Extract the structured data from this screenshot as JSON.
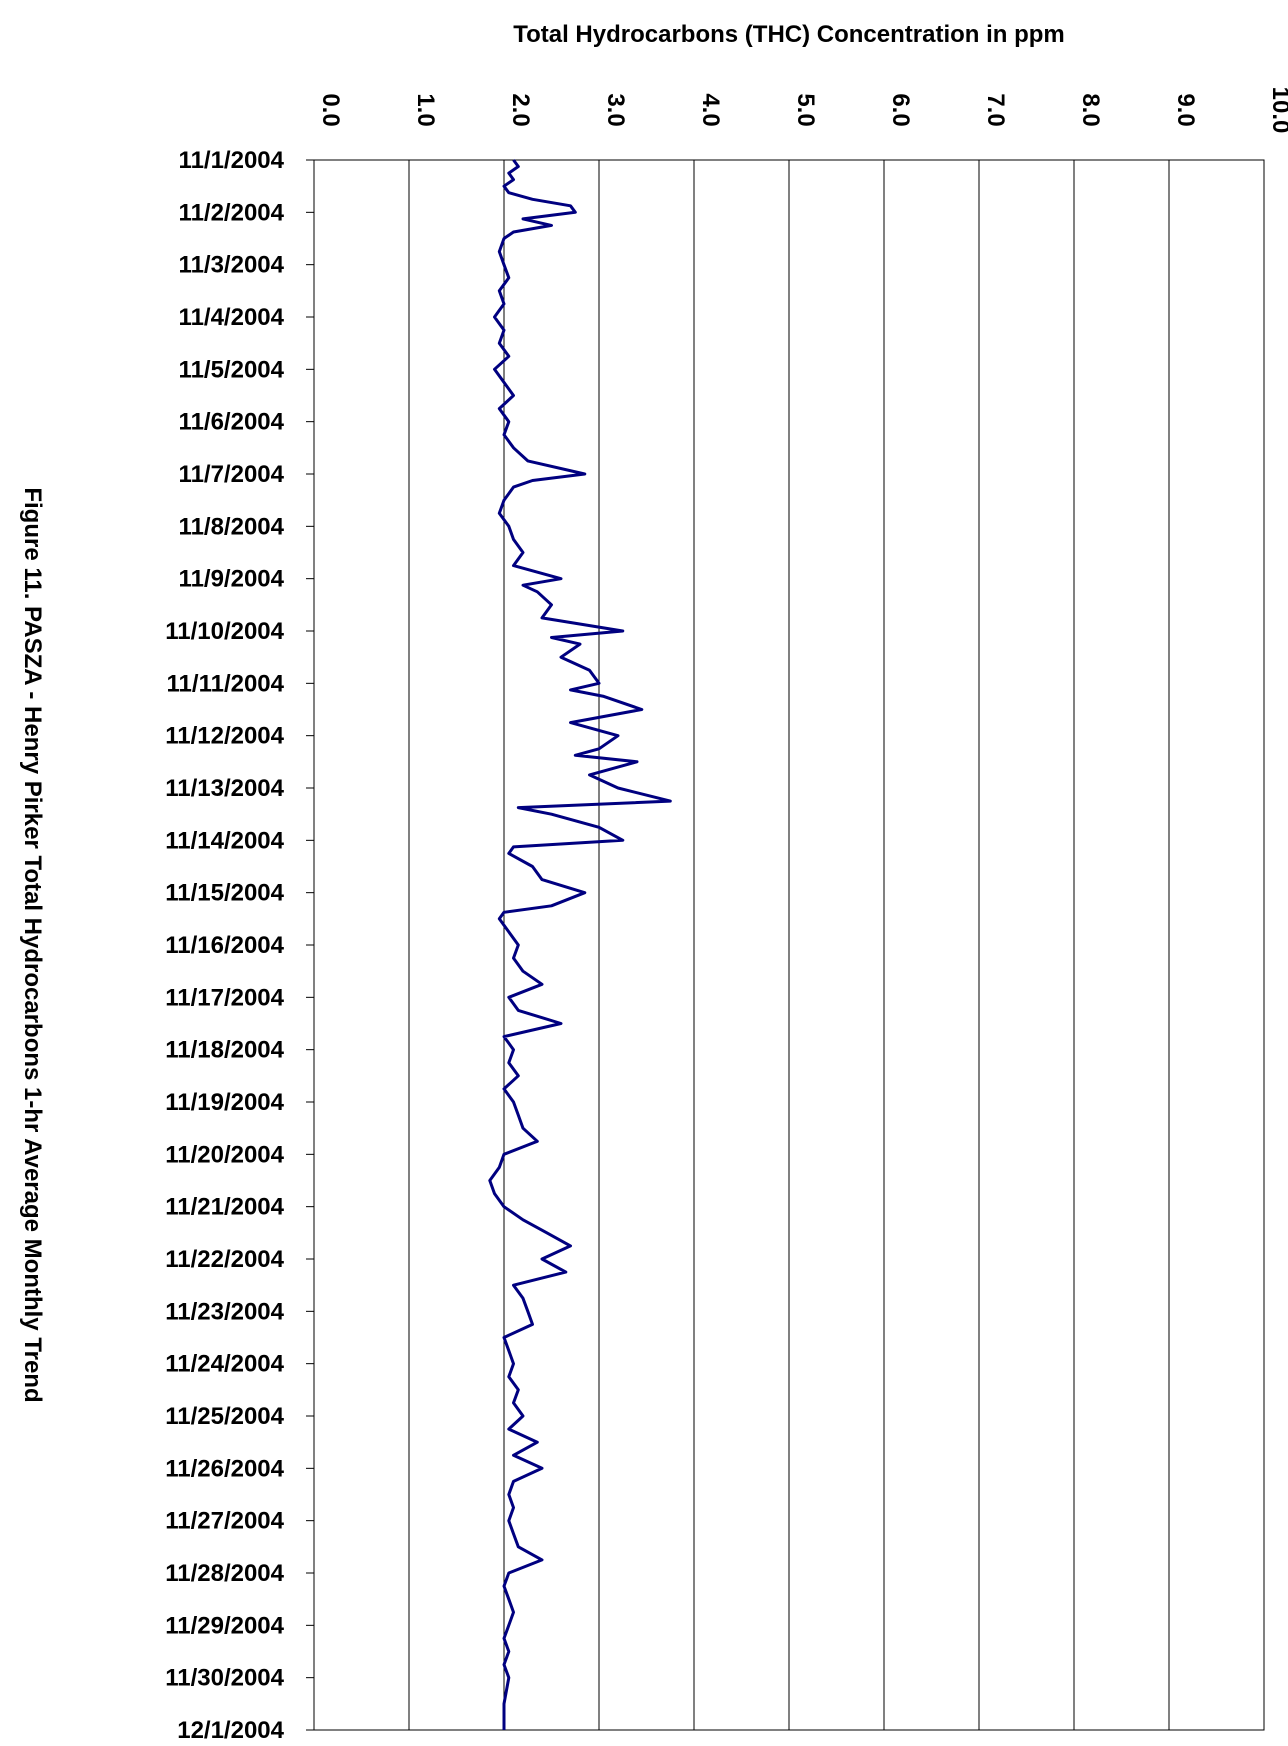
{
  "chart_data": {
    "type": "line",
    "title": "Figure 11.  PASZA - Henry Pirker Total Hydrocarbons 1-hr Average Monthly Trend",
    "xlabel": "Total Hydrocarbons (THC) Concentration in ppm",
    "ylabel": "",
    "value_axis": {
      "min": 0.0,
      "max": 10.0,
      "ticks": [
        "0.0",
        "1.0",
        "2.0",
        "3.0",
        "4.0",
        "5.0",
        "6.0",
        "7.0",
        "8.0",
        "9.0",
        "10.0"
      ]
    },
    "date_axis": {
      "ticks": [
        "11/1/2004",
        "11/2/2004",
        "11/3/2004",
        "11/4/2004",
        "11/5/2004",
        "11/6/2004",
        "11/7/2004",
        "11/8/2004",
        "11/9/2004",
        "11/10/2004",
        "11/11/2004",
        "11/12/2004",
        "11/13/2004",
        "11/14/2004",
        "11/15/2004",
        "11/16/2004",
        "11/17/2004",
        "11/18/2004",
        "11/19/2004",
        "11/20/2004",
        "11/21/2004",
        "11/22/2004",
        "11/23/2004",
        "11/24/2004",
        "11/25/2004",
        "11/26/2004",
        "11/27/2004",
        "11/28/2004",
        "11/29/2004",
        "11/30/2004",
        "12/1/2004"
      ]
    },
    "grid": true,
    "legend": "none",
    "colors": {
      "line": "#000080",
      "grid": "#000000",
      "background": "#ffffff"
    },
    "series": [
      {
        "date_value_pairs": [
          [
            "11/1/2004 00:00",
            2.1
          ],
          [
            "11/1/2004 03:00",
            2.15
          ],
          [
            "11/1/2004 06:00",
            2.05
          ],
          [
            "11/1/2004 09:00",
            2.1
          ],
          [
            "11/1/2004 12:00",
            2.0
          ],
          [
            "11/1/2004 15:00",
            2.05
          ],
          [
            "11/1/2004 18:00",
            2.3
          ],
          [
            "11/1/2004 21:00",
            2.7
          ],
          [
            "11/2/2004 00:00",
            2.75
          ],
          [
            "11/2/2004 03:00",
            2.2
          ],
          [
            "11/2/2004 06:00",
            2.5
          ],
          [
            "11/2/2004 09:00",
            2.1
          ],
          [
            "11/2/2004 12:00",
            2.0
          ],
          [
            "11/2/2004 18:00",
            1.95
          ],
          [
            "11/3/2004 00:00",
            2.0
          ],
          [
            "11/3/2004 06:00",
            2.05
          ],
          [
            "11/3/2004 12:00",
            1.95
          ],
          [
            "11/3/2004 18:00",
            2.0
          ],
          [
            "11/4/2004 00:00",
            1.9
          ],
          [
            "11/4/2004 06:00",
            2.0
          ],
          [
            "11/4/2004 12:00",
            1.95
          ],
          [
            "11/4/2004 18:00",
            2.05
          ],
          [
            "11/5/2004 00:00",
            1.9
          ],
          [
            "11/5/2004 06:00",
            2.0
          ],
          [
            "11/5/2004 12:00",
            2.1
          ],
          [
            "11/5/2004 18:00",
            1.95
          ],
          [
            "11/6/2004 00:00",
            2.05
          ],
          [
            "11/6/2004 06:00",
            2.0
          ],
          [
            "11/6/2004 12:00",
            2.1
          ],
          [
            "11/6/2004 18:00",
            2.25
          ],
          [
            "11/7/2004 00:00",
            2.85
          ],
          [
            "11/7/2004 03:00",
            2.3
          ],
          [
            "11/7/2004 06:00",
            2.1
          ],
          [
            "11/7/2004 12:00",
            2.0
          ],
          [
            "11/7/2004 18:00",
            1.95
          ],
          [
            "11/8/2004 00:00",
            2.05
          ],
          [
            "11/8/2004 06:00",
            2.1
          ],
          [
            "11/8/2004 12:00",
            2.2
          ],
          [
            "11/8/2004 18:00",
            2.1
          ],
          [
            "11/9/2004 00:00",
            2.6
          ],
          [
            "11/9/2004 03:00",
            2.2
          ],
          [
            "11/9/2004 06:00",
            2.35
          ],
          [
            "11/9/2004 12:00",
            2.5
          ],
          [
            "11/9/2004 18:00",
            2.4
          ],
          [
            "11/10/2004 00:00",
            3.25
          ],
          [
            "11/10/2004 03:00",
            2.5
          ],
          [
            "11/10/2004 06:00",
            2.8
          ],
          [
            "11/10/2004 12:00",
            2.6
          ],
          [
            "11/10/2004 18:00",
            2.9
          ],
          [
            "11/11/2004 00:00",
            3.0
          ],
          [
            "11/11/2004 03:00",
            2.7
          ],
          [
            "11/11/2004 06:00",
            3.05
          ],
          [
            "11/11/2004 12:00",
            3.45
          ],
          [
            "11/11/2004 18:00",
            2.7
          ],
          [
            "11/12/2004 00:00",
            3.2
          ],
          [
            "11/12/2004 06:00",
            3.0
          ],
          [
            "11/12/2004 09:00",
            2.75
          ],
          [
            "11/12/2004 12:00",
            3.4
          ],
          [
            "11/12/2004 18:00",
            2.9
          ],
          [
            "11/13/2004 00:00",
            3.2
          ],
          [
            "11/13/2004 06:00",
            3.75
          ],
          [
            "11/13/2004 09:00",
            2.15
          ],
          [
            "11/13/2004 12:00",
            2.5
          ],
          [
            "11/13/2004 18:00",
            3.0
          ],
          [
            "11/14/2004 00:00",
            3.25
          ],
          [
            "11/14/2004 03:00",
            2.1
          ],
          [
            "11/14/2004 06:00",
            2.05
          ],
          [
            "11/14/2004 12:00",
            2.3
          ],
          [
            "11/14/2004 18:00",
            2.4
          ],
          [
            "11/15/2004 00:00",
            2.85
          ],
          [
            "11/15/2004 06:00",
            2.5
          ],
          [
            "11/15/2004 09:00",
            2.0
          ],
          [
            "11/15/2004 12:00",
            1.95
          ],
          [
            "11/15/2004 18:00",
            2.05
          ],
          [
            "11/16/2004 00:00",
            2.15
          ],
          [
            "11/16/2004 06:00",
            2.1
          ],
          [
            "11/16/2004 12:00",
            2.2
          ],
          [
            "11/16/2004 18:00",
            2.4
          ],
          [
            "11/17/2004 00:00",
            2.05
          ],
          [
            "11/17/2004 06:00",
            2.15
          ],
          [
            "11/17/2004 12:00",
            2.6
          ],
          [
            "11/17/2004 18:00",
            2.0
          ],
          [
            "11/18/2004 00:00",
            2.1
          ],
          [
            "11/18/2004 06:00",
            2.05
          ],
          [
            "11/18/2004 12:00",
            2.15
          ],
          [
            "11/18/2004 18:00",
            2.0
          ],
          [
            "11/19/2004 00:00",
            2.1
          ],
          [
            "11/19/2004 06:00",
            2.15
          ],
          [
            "11/19/2004 12:00",
            2.2
          ],
          [
            "11/19/2004 18:00",
            2.35
          ],
          [
            "11/20/2004 00:00",
            2.0
          ],
          [
            "11/20/2004 06:00",
            1.95
          ],
          [
            "11/20/2004 12:00",
            1.85
          ],
          [
            "11/20/2004 18:00",
            1.9
          ],
          [
            "11/21/2004 00:00",
            2.0
          ],
          [
            "11/21/2004 06:00",
            2.2
          ],
          [
            "11/21/2004 12:00",
            2.45
          ],
          [
            "11/21/2004 18:00",
            2.7
          ],
          [
            "11/22/2004 00:00",
            2.4
          ],
          [
            "11/22/2004 06:00",
            2.65
          ],
          [
            "11/22/2004 12:00",
            2.1
          ],
          [
            "11/22/2004 18:00",
            2.2
          ],
          [
            "11/23/2004 00:00",
            2.25
          ],
          [
            "11/23/2004 06:00",
            2.3
          ],
          [
            "11/23/2004 12:00",
            2.0
          ],
          [
            "11/23/2004 18:00",
            2.05
          ],
          [
            "11/24/2004 00:00",
            2.1
          ],
          [
            "11/24/2004 06:00",
            2.05
          ],
          [
            "11/24/2004 12:00",
            2.15
          ],
          [
            "11/24/2004 18:00",
            2.1
          ],
          [
            "11/25/2004 00:00",
            2.2
          ],
          [
            "11/25/2004 06:00",
            2.05
          ],
          [
            "11/25/2004 12:00",
            2.35
          ],
          [
            "11/25/2004 18:00",
            2.1
          ],
          [
            "11/26/2004 00:00",
            2.4
          ],
          [
            "11/26/2004 06:00",
            2.1
          ],
          [
            "11/26/2004 12:00",
            2.05
          ],
          [
            "11/26/2004 18:00",
            2.1
          ],
          [
            "11/27/2004 00:00",
            2.05
          ],
          [
            "11/27/2004 06:00",
            2.1
          ],
          [
            "11/27/2004 12:00",
            2.15
          ],
          [
            "11/27/2004 18:00",
            2.4
          ],
          [
            "11/28/2004 00:00",
            2.05
          ],
          [
            "11/28/2004 06:00",
            2.0
          ],
          [
            "11/28/2004 12:00",
            2.05
          ],
          [
            "11/28/2004 18:00",
            2.1
          ],
          [
            "11/29/2004 00:00",
            2.05
          ],
          [
            "11/29/2004 06:00",
            2.0
          ],
          [
            "11/29/2004 12:00",
            2.05
          ],
          [
            "11/29/2004 18:00",
            2.0
          ],
          [
            "11/30/2004 00:00",
            2.05
          ],
          [
            "11/30/2004 12:00",
            2.0
          ],
          [
            "12/1/2004 00:00",
            2.0
          ]
        ]
      }
    ]
  }
}
